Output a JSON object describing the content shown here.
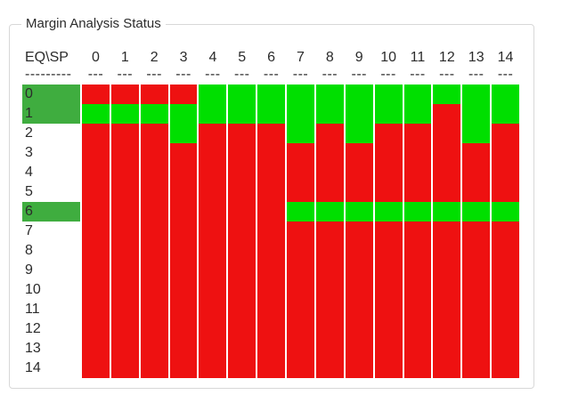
{
  "panel": {
    "title": "Margin Analysis Status"
  },
  "grid": {
    "corner_header": "EQ\\SP",
    "corner_underline": "---------",
    "column_underline": "---",
    "column_headers": [
      "0",
      "1",
      "2",
      "3",
      "4",
      "5",
      "6",
      "7",
      "8",
      "9",
      "10",
      "11",
      "12",
      "13",
      "14"
    ],
    "highlighted_row_labels": [
      "0",
      "1",
      "6"
    ],
    "rows": [
      {
        "label": "0",
        "highlighted": true,
        "cells": "RRRRGGGGGGGGGGG"
      },
      {
        "label": "1",
        "highlighted": true,
        "cells": "GGGGGGGGGGGGRGG"
      },
      {
        "label": "2",
        "highlighted": false,
        "cells": "RRRGRRRGRGRRRGR"
      },
      {
        "label": "3",
        "highlighted": false,
        "cells": "RRRRRRRRRRRRRRR"
      },
      {
        "label": "4",
        "highlighted": false,
        "cells": "RRRRRRRRRRRRRRR"
      },
      {
        "label": "5",
        "highlighted": false,
        "cells": "RRRRRRRRRRRRRRR"
      },
      {
        "label": "6",
        "highlighted": true,
        "cells": "RRRRRRRGGGGGGGG"
      },
      {
        "label": "7",
        "highlighted": false,
        "cells": "RRRRRRRRRRRRRRR"
      },
      {
        "label": "8",
        "highlighted": false,
        "cells": "RRRRRRRRRRRRRRR"
      },
      {
        "label": "9",
        "highlighted": false,
        "cells": "RRRRRRRRRRRRRRR"
      },
      {
        "label": "10",
        "highlighted": false,
        "cells": "RRRRRRRRRRRRRRR"
      },
      {
        "label": "11",
        "highlighted": false,
        "cells": "RRRRRRRRRRRRRRR"
      },
      {
        "label": "12",
        "highlighted": false,
        "cells": "RRRRRRRRRRRRRRR"
      },
      {
        "label": "13",
        "highlighted": false,
        "cells": "RRRRRRRRRRRRRRR"
      },
      {
        "label": "14",
        "highlighted": false,
        "cells": "RRRRRRRRRRRRRRR"
      }
    ],
    "cell_value_legend": {
      "G": "green",
      "R": "red"
    }
  },
  "colors": {
    "cell_green": "#00df00",
    "cell_red": "#ee1111",
    "row_highlight_green": "#3fad3f",
    "groupbox_border": "#d8d8d8",
    "text": "#2b2b2b",
    "background": "#ffffff"
  }
}
